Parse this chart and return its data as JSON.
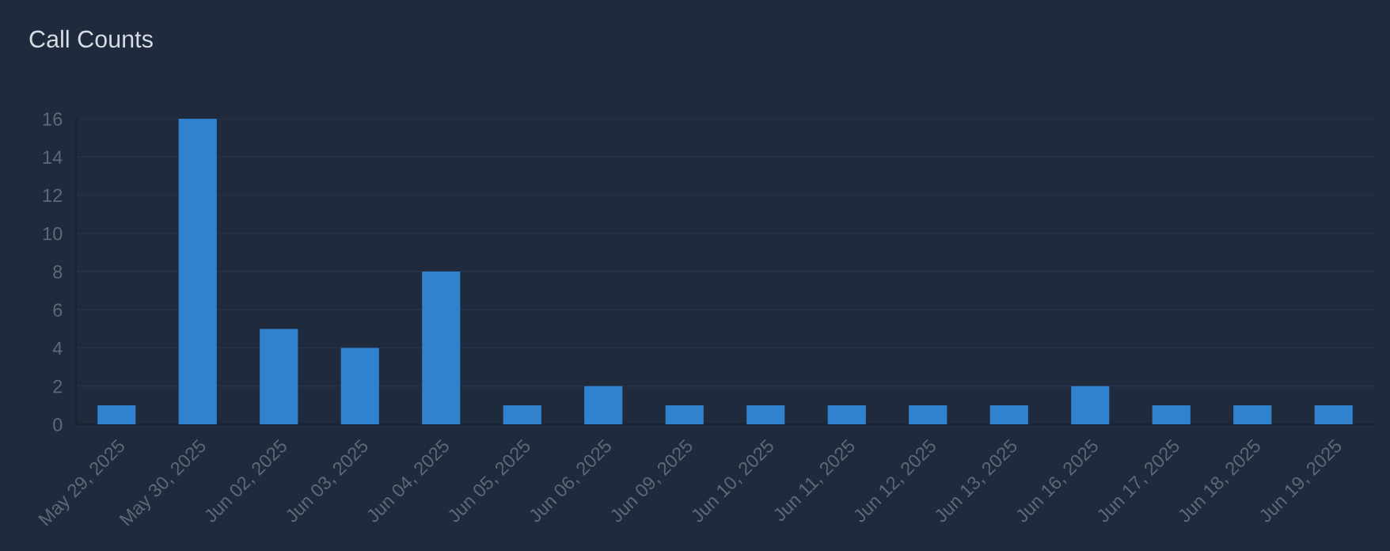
{
  "chart_data": {
    "type": "bar",
    "title": "Call Counts",
    "categories": [
      "May 29, 2025",
      "May 30, 2025",
      "Jun 02, 2025",
      "Jun 03, 2025",
      "Jun 04, 2025",
      "Jun 05, 2025",
      "Jun 06, 2025",
      "Jun 09, 2025",
      "Jun 10, 2025",
      "Jun 11, 2025",
      "Jun 12, 2025",
      "Jun 13, 2025",
      "Jun 16, 2025",
      "Jun 17, 2025",
      "Jun 18, 2025",
      "Jun 19, 2025"
    ],
    "values": [
      1,
      16,
      5,
      4,
      8,
      1,
      2,
      1,
      1,
      1,
      1,
      1,
      2,
      1,
      1,
      1
    ],
    "color": "#3182ce",
    "ylim": [
      0,
      16
    ],
    "yticks": [
      0,
      2,
      4,
      6,
      8,
      10,
      12,
      14,
      16
    ],
    "grid": "y"
  }
}
